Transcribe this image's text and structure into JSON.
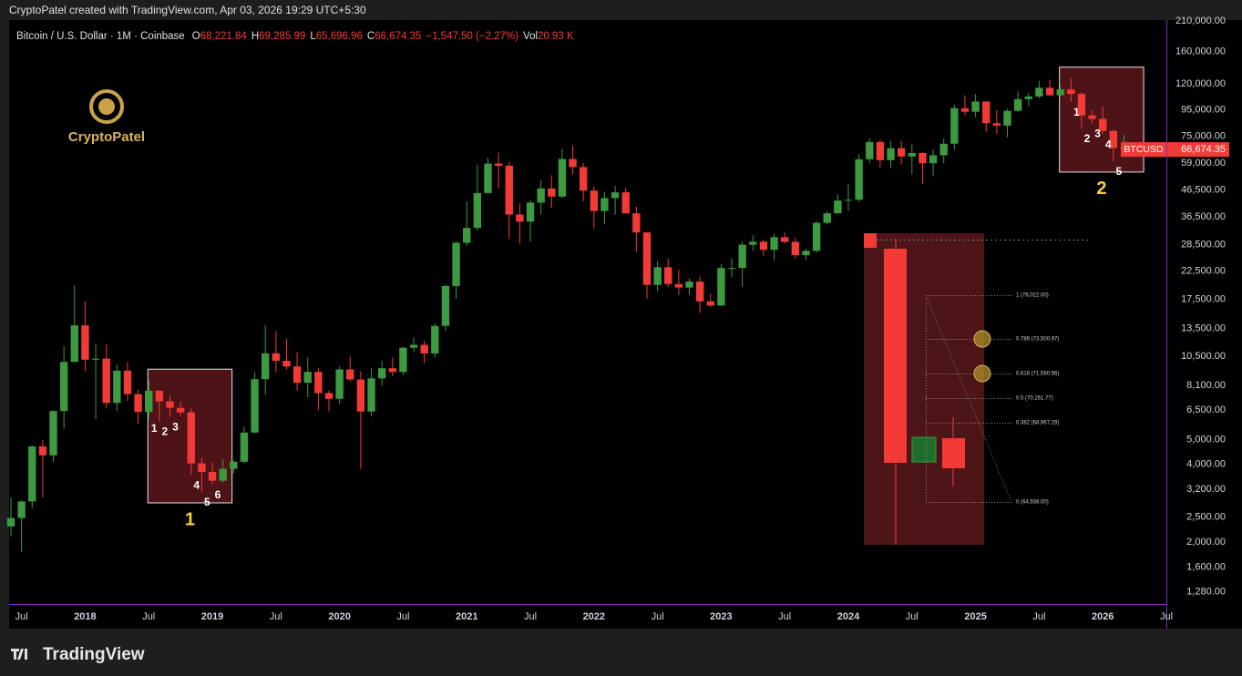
{
  "header": {
    "credit": "CryptoPatel created with TradingView.com, Apr 03, 2026 19:29 UTC+5:30"
  },
  "logo": {
    "text": "CryptoPatel"
  },
  "footer": {
    "brand": "TradingView"
  },
  "chart_data": {
    "type": "candlestick",
    "title": "Bitcoin / U.S. Dollar · 1M · Coinbase",
    "legend": {
      "items": [
        {
          "key": "O",
          "value": "68,221.84"
        },
        {
          "key": "H",
          "value": "69,285.99"
        },
        {
          "key": "L",
          "value": "65,696.96"
        },
        {
          "key": "C",
          "value": "66,674.35"
        }
      ],
      "change": "−1,547.50 (−2.27%)",
      "vol_key": "Vol",
      "vol": "20.93 K"
    },
    "up_color": "#3d9a40",
    "down_color": "#f23b36",
    "log_scale": true,
    "grid": false,
    "x": [
      "2017-06",
      "2017-07",
      "2017-08",
      "2017-09",
      "2017-10",
      "2017-11",
      "2017-12",
      "2018-01",
      "2018-02",
      "2018-03",
      "2018-04",
      "2018-05",
      "2018-06",
      "2018-07",
      "2018-08",
      "2018-09",
      "2018-10",
      "2018-11",
      "2018-12",
      "2019-01",
      "2019-02",
      "2019-03",
      "2019-04",
      "2019-05",
      "2019-06",
      "2019-07",
      "2019-08",
      "2019-09",
      "2019-10",
      "2019-11",
      "2019-12",
      "2020-01",
      "2020-02",
      "2020-03",
      "2020-04",
      "2020-05",
      "2020-06",
      "2020-07",
      "2020-08",
      "2020-09",
      "2020-10",
      "2020-11",
      "2020-12",
      "2021-01",
      "2021-02",
      "2021-03",
      "2021-04",
      "2021-05",
      "2021-06",
      "2021-07",
      "2021-08",
      "2021-09",
      "2021-10",
      "2021-11",
      "2021-12",
      "2022-01",
      "2022-02",
      "2022-03",
      "2022-04",
      "2022-05",
      "2022-06",
      "2022-07",
      "2022-08",
      "2022-09",
      "2022-10",
      "2022-11",
      "2022-12",
      "2023-01",
      "2023-02",
      "2023-03",
      "2023-04",
      "2023-05",
      "2023-06",
      "2023-07",
      "2023-08",
      "2023-09",
      "2023-10",
      "2023-11",
      "2023-12",
      "2024-01",
      "2024-02",
      "2024-03",
      "2024-04",
      "2024-05",
      "2024-06",
      "2024-07",
      "2024-08",
      "2024-09",
      "2024-10",
      "2024-11",
      "2024-12",
      "2025-01",
      "2025-02",
      "2025-03",
      "2025-04",
      "2025-05",
      "2025-06",
      "2025-07",
      "2025-08",
      "2025-09",
      "2025-10",
      "2025-11",
      "2025-12",
      "2026-01",
      "2026-02",
      "2026-03",
      "2026-04"
    ],
    "open": [
      2300,
      2480,
      2875,
      4700,
      4340,
      6450,
      10000,
      13860,
      10200,
      10300,
      6930,
      9250,
      7500,
      6400,
      7730,
      7030,
      6630,
      6370,
      4040,
      3740,
      3460,
      3850,
      4100,
      5320,
      8570,
      10800,
      10100,
      9600,
      8300,
      9150,
      7570,
      7190,
      9350,
      8550,
      6420,
      8630,
      9450,
      9140,
      11350,
      11650,
      10780,
      13800,
      19700,
      28990,
      33100,
      45200,
      58800,
      57700,
      37300,
      35000,
      41500,
      47100,
      43800,
      61300,
      57000,
      46200,
      38500,
      43200,
      45500,
      37700,
      31800,
      19900,
      23300,
      20050,
      19430,
      20490,
      17170,
      16550,
      23140,
      23150,
      28470,
      29250,
      27220,
      30470,
      29230,
      25940,
      26970,
      34650,
      37720,
      42280,
      42580,
      61130,
      71330,
      60640,
      67490,
      62680,
      64620,
      58970,
      63330,
      70220,
      96450,
      93430,
      102400,
      84350,
      82550,
      94200,
      104600,
      107100,
      115750,
      108250,
      114050,
      109600,
      90400,
      87600,
      78700,
      67500,
      68221.84
    ],
    "high": [
      2980,
      2900,
      4750,
      4980,
      6450,
      11500,
      19800,
      17200,
      11800,
      11700,
      9750,
      10000,
      7770,
      8500,
      7770,
      7400,
      6980,
      6600,
      4250,
      4070,
      4200,
      4150,
      5600,
      9100,
      13900,
      13150,
      12300,
      10900,
      10400,
      9500,
      7750,
      9600,
      10500,
      9200,
      9450,
      10080,
      10400,
      11450,
      12470,
      12100,
      14100,
      19900,
      29300,
      41950,
      58350,
      61780,
      64900,
      59500,
      41300,
      42400,
      50500,
      53000,
      67000,
      69000,
      59100,
      47900,
      45800,
      48200,
      47400,
      40000,
      31900,
      24650,
      25200,
      22800,
      21100,
      21450,
      18400,
      23950,
      25250,
      29200,
      31000,
      29850,
      31400,
      31800,
      30200,
      27500,
      35200,
      38450,
      44700,
      48970,
      63900,
      73800,
      72800,
      71950,
      72000,
      70000,
      65100,
      66500,
      73600,
      99600,
      108300,
      109350,
      102500,
      95000,
      95800,
      111900,
      110500,
      123200,
      124500,
      117900,
      126200,
      111000,
      94500,
      97900,
      79400,
      76000,
      69285.99
    ],
    "low": [
      2100,
      1830,
      2700,
      2980,
      4100,
      5500,
      10900,
      9200,
      6000,
      6600,
      6450,
      7050,
      5750,
      6070,
      5880,
      6130,
      6200,
      3650,
      3130,
      3350,
      3400,
      3700,
      4050,
      5280,
      7450,
      9100,
      9350,
      7750,
      7300,
      6500,
      6430,
      6850,
      8400,
      3850,
      6150,
      8100,
      8800,
      8900,
      10900,
      9850,
      10400,
      13200,
      17600,
      28130,
      32300,
      44950,
      47000,
      30000,
      28800,
      29300,
      37300,
      39600,
      43300,
      53250,
      42000,
      32950,
      34300,
      37200,
      37700,
      26700,
      17600,
      18800,
      19550,
      18150,
      18200,
      15480,
      16270,
      16500,
      21350,
      19550,
      26950,
      25800,
      24800,
      28850,
      25200,
      24900,
      26550,
      34100,
      37600,
      38550,
      41880,
      59000,
      56500,
      56550,
      58400,
      53500,
      49000,
      52550,
      58900,
      66800,
      90500,
      89100,
      78200,
      76600,
      74400,
      93400,
      98200,
      105100,
      107300,
      107200,
      102000,
      80500,
      84400,
      76500,
      60100,
      62500,
      65696.96
    ],
    "close": [
      2480,
      2875,
      4700,
      4340,
      6450,
      10000,
      13860,
      10200,
      10300,
      6930,
      9250,
      7500,
      6400,
      7730,
      7030,
      6630,
      6370,
      4040,
      3740,
      3460,
      3850,
      4100,
      5320,
      8570,
      10800,
      10100,
      9600,
      8300,
      9150,
      7570,
      7190,
      9350,
      8550,
      6420,
      8630,
      9450,
      9140,
      11350,
      11650,
      10780,
      13800,
      19700,
      28990,
      33100,
      45200,
      58800,
      57700,
      37300,
      35000,
      41500,
      47100,
      43800,
      61300,
      57000,
      46200,
      38500,
      43200,
      45500,
      37700,
      31800,
      19900,
      23300,
      20050,
      19430,
      20490,
      17170,
      16550,
      23140,
      23150,
      28470,
      29250,
      27220,
      30470,
      29230,
      25940,
      26970,
      34650,
      37720,
      42280,
      42580,
      61130,
      71330,
      60640,
      67490,
      62680,
      64620,
      58970,
      63330,
      70220,
      96450,
      93430,
      102400,
      84350,
      82550,
      94200,
      104600,
      107100,
      115750,
      108250,
      114050,
      109600,
      90400,
      87600,
      78700,
      67500,
      68221.84,
      66674.35
    ],
    "xlim": [
      "2017-06",
      "2026-07"
    ],
    "xticks": [
      {
        "value": "2017-07",
        "label": "Jul"
      },
      {
        "value": "2018-01",
        "label": "2018"
      },
      {
        "value": "2018-07",
        "label": "Jul"
      },
      {
        "value": "2019-01",
        "label": "2019"
      },
      {
        "value": "2019-07",
        "label": "Jul"
      },
      {
        "value": "2020-01",
        "label": "2020"
      },
      {
        "value": "2020-07",
        "label": "Jul"
      },
      {
        "value": "2021-01",
        "label": "2021"
      },
      {
        "value": "2021-07",
        "label": "Jul"
      },
      {
        "value": "2022-01",
        "label": "2022"
      },
      {
        "value": "2022-07",
        "label": "Jul"
      },
      {
        "value": "2023-01",
        "label": "2023"
      },
      {
        "value": "2023-07",
        "label": "Jul"
      },
      {
        "value": "2024-01",
        "label": "2024"
      },
      {
        "value": "2024-07",
        "label": "Jul"
      },
      {
        "value": "2025-01",
        "label": "2025"
      },
      {
        "value": "2025-07",
        "label": "Jul"
      },
      {
        "value": "2026-01",
        "label": "2026"
      },
      {
        "value": "2026-07",
        "label": "Jul"
      }
    ],
    "ylim": [
      1150,
      212000
    ],
    "yticks": [
      {
        "value": 210000,
        "label": "210,000.00"
      },
      {
        "value": 160000,
        "label": "160,000.00"
      },
      {
        "value": 120000,
        "label": "120,000.00"
      },
      {
        "value": 95000,
        "label": "95,000.00"
      },
      {
        "value": 75000,
        "label": "75,000.00"
      },
      {
        "value": 59000,
        "label": "59,000.00"
      },
      {
        "value": 46500,
        "label": "46,500.00"
      },
      {
        "value": 36500,
        "label": "36,500.00"
      },
      {
        "value": 28500,
        "label": "28,500.00"
      },
      {
        "value": 22500,
        "label": "22,500.00"
      },
      {
        "value": 17500,
        "label": "17,500.00"
      },
      {
        "value": 13500,
        "label": "13,500.00"
      },
      {
        "value": 10500,
        "label": "10,500.00"
      },
      {
        "value": 8100,
        "label": "8,100.00"
      },
      {
        "value": 6500,
        "label": "6,500.00"
      },
      {
        "value": 5000,
        "label": "5,000.00"
      },
      {
        "value": 4000,
        "label": "4,000.00"
      },
      {
        "value": 3200,
        "label": "3,200.00"
      },
      {
        "value": 2500,
        "label": "2,500.00"
      },
      {
        "value": 2000,
        "label": "2,000.00"
      },
      {
        "value": 1600,
        "label": "1,600.00"
      },
      {
        "value": 1280,
        "label": "1,280.00"
      }
    ],
    "price_tag": {
      "symbol": "BTCUSD",
      "label": "66,674.35"
    },
    "zones": [
      {
        "label": "1",
        "from": "2018-07",
        "to": "2019-02"
      },
      {
        "label": "2",
        "from": "2025-09",
        "to": "2026-04"
      }
    ],
    "counts": [
      {
        "text": "1",
        "x": "2018-07"
      },
      {
        "text": "2",
        "x": "2018-08"
      },
      {
        "text": "3",
        "x": "2018-09"
      },
      {
        "text": "4",
        "x": "2018-11"
      },
      {
        "text": "5",
        "x": "2018-12"
      },
      {
        "text": "6",
        "x": "2019-01"
      },
      {
        "text": "1",
        "x": "2025-10"
      },
      {
        "text": "2",
        "x": "2025-11"
      },
      {
        "text": "3",
        "x": "2025-12"
      },
      {
        "text": "4",
        "x": "2026-01"
      },
      {
        "text": "5",
        "x": "2026-02"
      }
    ],
    "inset": {
      "fib_levels": [
        "1 (76,022.00)",
        "0.786 (73,500.97)",
        "0.618 (71,580.56)",
        "0.5 (70,261.77)",
        "0.382 (68,967.29)",
        "0 (64,938.00)"
      ]
    }
  }
}
